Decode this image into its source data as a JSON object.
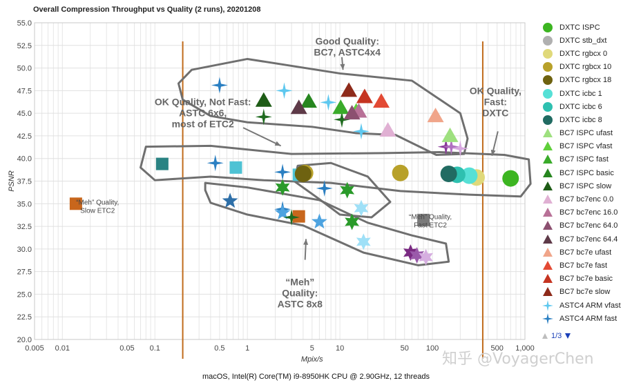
{
  "chart_data": {
    "type": "scatter",
    "title": "Overall Compression Throughput vs Quality (2 runs), 20201208",
    "xlabel": "Mpix/s",
    "ylabel": "PSNR",
    "x_scale": "log",
    "xlim": [
      0.005,
      1000
    ],
    "ylim": [
      20,
      55
    ],
    "x_ticks": [
      0.005,
      0.01,
      0.05,
      0.1,
      0.5,
      1,
      5,
      10,
      50,
      100,
      500,
      1000
    ],
    "x_tick_labels": [
      "0.005",
      "0.01",
      "0.05",
      "0.1",
      "0.5",
      "1",
      "5",
      "10",
      "50",
      "100",
      "500",
      "1,000"
    ],
    "y_ticks": [
      20,
      22.5,
      25,
      27.5,
      30,
      32.5,
      35,
      37.5,
      40,
      42.5,
      45,
      47.5,
      50,
      52.5,
      55
    ],
    "y_tick_labels": [
      "20.0",
      "22.5",
      "25.0",
      "27.5",
      "30.0",
      "32.5",
      "35.0",
      "37.5",
      "40.0",
      "42.5",
      "45.0",
      "47.5",
      "50.0",
      "52.5",
      "55.0"
    ],
    "grid": true,
    "legend_position": "right",
    "series": [
      {
        "name": "DXTC ISPC",
        "shape": "circle",
        "color": "#3cb521",
        "points": [
          [
            700,
            37.8
          ]
        ]
      },
      {
        "name": "DXTC stb_dxt",
        "shape": "circle",
        "color": "#b0b0b0",
        "points": []
      },
      {
        "name": "DXTC rgbcx 0",
        "shape": "circle",
        "color": "#e0d97a",
        "points": [
          [
            300,
            37.9
          ]
        ]
      },
      {
        "name": "DXTC rgbcx 10",
        "shape": "circle",
        "color": "#b8a12a",
        "points": [
          [
            4.2,
            38.4
          ],
          [
            45,
            38.4
          ]
        ]
      },
      {
        "name": "DXTC rgbcx 18",
        "shape": "circle",
        "color": "#6e6210",
        "points": [
          [
            4.0,
            38.3
          ]
        ]
      },
      {
        "name": "DXTC icbc 1",
        "shape": "circle",
        "color": "#56e0d6",
        "points": [
          [
            250,
            38.1
          ]
        ]
      },
      {
        "name": "DXTC icbc 6",
        "shape": "circle",
        "color": "#2ec0b0",
        "points": [
          [
            185,
            38.2
          ]
        ]
      },
      {
        "name": "DXTC icbc 8",
        "shape": "circle",
        "color": "#216b62",
        "points": [
          [
            150,
            38.3
          ]
        ]
      },
      {
        "name": "BC7 ISPC ufast",
        "shape": "triangle",
        "color": "#9ee07f",
        "points": [
          [
            155,
            42.5
          ]
        ]
      },
      {
        "name": "BC7 ISPC vfast",
        "shape": "triangle",
        "color": "#5fcf3a",
        "points": [
          [
            15,
            45.2
          ]
        ]
      },
      {
        "name": "BC7 ISPC fast",
        "shape": "triangle",
        "color": "#3aab2a",
        "points": [
          [
            10.2,
            45.6
          ]
        ]
      },
      {
        "name": "BC7 ISPC basic",
        "shape": "triangle",
        "color": "#27861f",
        "points": [
          [
            4.6,
            46.3
          ]
        ]
      },
      {
        "name": "BC7 ISPC slow",
        "shape": "triangle",
        "color": "#1e5c16",
        "points": [
          [
            1.5,
            46.4
          ]
        ]
      },
      {
        "name": "BC7 bc7enc 0.0",
        "shape": "triangle",
        "color": "#e0b0d3",
        "points": [
          [
            33,
            43.1
          ]
        ]
      },
      {
        "name": "BC7 bc7enc 16.0",
        "shape": "triangle",
        "color": "#b87197",
        "points": [
          [
            16,
            45.2
          ]
        ]
      },
      {
        "name": "BC7 bc7enc 64.0",
        "shape": "triangle",
        "color": "#8c5070",
        "points": [
          [
            13.5,
            45.0
          ]
        ]
      },
      {
        "name": "BC7 bc7enc 64.4",
        "shape": "triangle",
        "color": "#5e3a48",
        "points": [
          [
            3.6,
            45.6
          ]
        ]
      },
      {
        "name": "BC7 bc7e ufast",
        "shape": "triangle",
        "color": "#f0a58a",
        "points": [
          [
            108,
            44.7
          ]
        ]
      },
      {
        "name": "BC7 bc7e fast",
        "shape": "triangle",
        "color": "#e34a34",
        "points": [
          [
            28,
            46.3
          ]
        ]
      },
      {
        "name": "BC7 bc7e basic",
        "shape": "triangle",
        "color": "#c53421",
        "points": [
          [
            18.5,
            46.8
          ]
        ]
      },
      {
        "name": "BC7 bc7e slow",
        "shape": "triangle",
        "color": "#8e2a1a",
        "points": [
          [
            12.5,
            47.5
          ]
        ]
      },
      {
        "name": "ASTC4 ARM vfast",
        "shape": "star4",
        "color": "#5ec8ef",
        "points": [
          [
            2.5,
            47.5
          ],
          [
            7.5,
            46.2
          ],
          [
            17,
            43.0
          ]
        ]
      },
      {
        "name": "ASTC4 ARM fast",
        "shape": "star4",
        "color": "#2a7fc2",
        "points": [
          [
            0.5,
            48.1
          ]
        ]
      }
    ],
    "extra_series_not_in_visible_legend_page": [
      {
        "shape": "square",
        "color": "#c8661c",
        "points": [
          [
            0.014,
            35.0
          ],
          [
            3.6,
            33.6
          ]
        ]
      },
      {
        "shape": "square",
        "color": "#2a8383",
        "points": [
          [
            0.12,
            39.4
          ]
        ]
      },
      {
        "shape": "square",
        "color": "#4ec2d4",
        "points": [
          [
            0.75,
            39.0
          ],
          [
            3.6,
            38.2
          ]
        ]
      },
      {
        "shape": "square",
        "color": "#7a7a7a",
        "points": [
          [
            80,
            33.2
          ]
        ]
      },
      {
        "shape": "star4",
        "color": "#2a7fc2",
        "points": [
          [
            0.45,
            39.5
          ],
          [
            2.4,
            38.5
          ],
          [
            6.8,
            36.7
          ],
          [
            2.4,
            34.4
          ]
        ]
      },
      {
        "shape": "star5",
        "color": "#2e6fa8",
        "points": [
          [
            0.65,
            35.3
          ]
        ]
      },
      {
        "shape": "star5",
        "color": "#4da3e0",
        "points": [
          [
            2.4,
            34.0
          ],
          [
            6.0,
            33.0
          ]
        ]
      },
      {
        "shape": "star6",
        "color": "#9fe0f7",
        "points": [
          [
            17,
            34.5
          ],
          [
            18,
            30.8
          ]
        ]
      },
      {
        "shape": "star6",
        "color": "#2a9a2a",
        "points": [
          [
            2.4,
            36.8
          ],
          [
            12,
            36.5
          ],
          [
            13.5,
            33.0
          ]
        ]
      },
      {
        "shape": "star4",
        "color": "#1f6b1f",
        "points": [
          [
            1.5,
            44.6
          ],
          [
            10.5,
            44.3
          ],
          [
            3.0,
            33.5
          ]
        ]
      },
      {
        "shape": "star4",
        "color": "#8a3a9a",
        "points": [
          [
            140,
            41.3
          ]
        ]
      },
      {
        "shape": "star4",
        "color": "#b070c0",
        "points": [
          [
            160,
            41.3
          ]
        ]
      },
      {
        "shape": "star4",
        "color": "#d8a8e0",
        "points": [
          [
            200,
            41.1
          ]
        ]
      },
      {
        "shape": "star6",
        "color": "#7a2a82",
        "points": [
          [
            58,
            29.6
          ]
        ]
      },
      {
        "shape": "star6",
        "color": "#9a5aaa",
        "points": [
          [
            68,
            29.3
          ]
        ]
      },
      {
        "shape": "star6",
        "color": "#d6aee0",
        "points": [
          [
            85,
            29.1
          ]
        ]
      }
    ],
    "vertical_lines_x": [
      0.2,
      350
    ],
    "annotations": [
      {
        "text": "Good Quality:\nBC7, ASTC4x4",
        "x": 12,
        "y": 52.6
      },
      {
        "text": "OK Quality, Not Fast:\nASTC 6x6,\nmost of ETC2",
        "x": 0.33,
        "y": 45.9
      },
      {
        "text": "OK Quality,\nFast:\nDXTC",
        "x": 480,
        "y": 47.1
      },
      {
        "text": "“Meh”\nQuality:\nASTC 8x8",
        "x": 3.7,
        "y": 26.0
      },
      {
        "text": "“Meh” Quality,\nSlow ETC2",
        "x": 0.024,
        "y": 34.9,
        "small": true
      },
      {
        "text": "“Meh” Quality,\nFast ETC2",
        "x": 95,
        "y": 33.3,
        "small": true
      }
    ]
  },
  "legend_pager": {
    "page": "1/3"
  },
  "footer": "macOS, Intel(R) Core(TM) i9-8950HK CPU @ 2.90GHz, 12 threads",
  "watermark": "知乎 @VoyagerChen"
}
